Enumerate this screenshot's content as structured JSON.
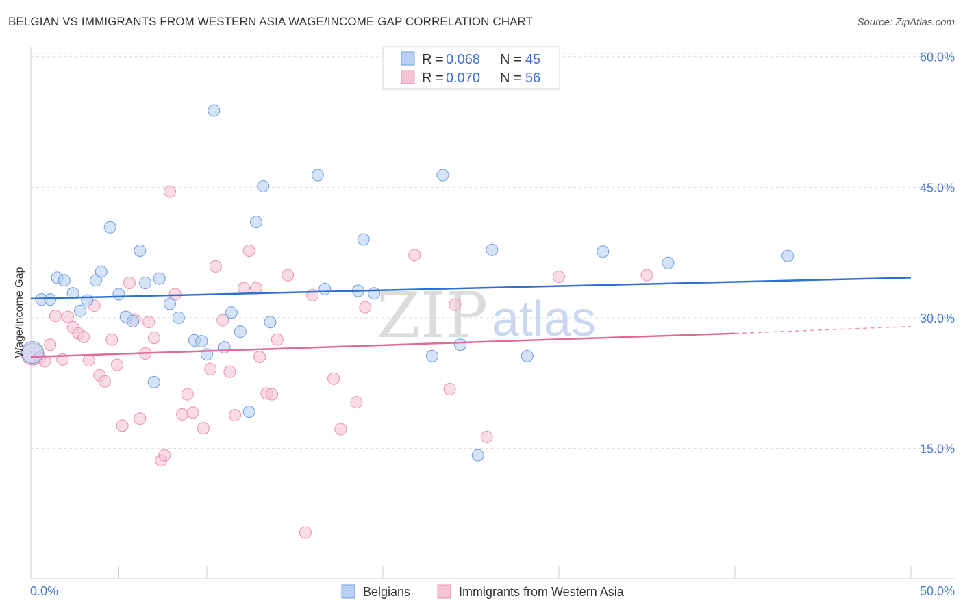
{
  "title": "BELGIAN VS IMMIGRANTS FROM WESTERN ASIA WAGE/INCOME GAP CORRELATION CHART",
  "source": "Source: ZipAtlas.com",
  "watermark": {
    "zip": "ZIP",
    "atlas": "atlas"
  },
  "colors": {
    "blue_fill": "#b8d0f4",
    "blue_stroke": "#6f9be0",
    "blue_line": "#2f6fd0",
    "pink_fill": "#f7c4d4",
    "pink_stroke": "#e990ab",
    "pink_line": "#e06a93",
    "grid": "#dcdcdc",
    "tick_text": "#4a7bd0"
  },
  "legend": {
    "rows": [
      {
        "r_label": "R = ",
        "r_value": "0.068",
        "n_label": "N = ",
        "n_value": "45"
      },
      {
        "r_label": "R = ",
        "r_value": "0.070",
        "n_label": "N = ",
        "n_value": "56"
      }
    ]
  },
  "bottom_legend": [
    "Belgians",
    "Immigrants from Western Asia"
  ],
  "chart_data": {
    "type": "scatter",
    "title": "BELGIAN VS IMMIGRANTS FROM WESTERN ASIA WAGE/INCOME GAP CORRELATION CHART",
    "xlabel": "",
    "ylabel": "Wage/Income Gap",
    "xlim": [
      0,
      50
    ],
    "ylim": [
      0,
      61
    ],
    "x_tick_labels": [
      "0.0%",
      "50.0%"
    ],
    "y_ticks": [
      15,
      30,
      45,
      60
    ],
    "y_tick_labels": [
      "15.0%",
      "30.0%",
      "45.0%",
      "60.0%"
    ],
    "grid": true,
    "legend_position": "top-center",
    "series": [
      {
        "name": "Belgians",
        "r": 0.068,
        "n": 45,
        "trend": {
          "x": [
            0,
            50
          ],
          "y": [
            32.2,
            34.6
          ]
        },
        "points": [
          {
            "x": 0.1,
            "y": 26.0,
            "big": true
          },
          {
            "x": 0.6,
            "y": 32.1
          },
          {
            "x": 1.1,
            "y": 32.1
          },
          {
            "x": 1.5,
            "y": 34.6
          },
          {
            "x": 1.9,
            "y": 34.3
          },
          {
            "x": 2.4,
            "y": 32.8
          },
          {
            "x": 2.8,
            "y": 30.8
          },
          {
            "x": 3.2,
            "y": 32.0
          },
          {
            "x": 3.7,
            "y": 34.3
          },
          {
            "x": 4.0,
            "y": 35.3
          },
          {
            "x": 4.5,
            "y": 40.4
          },
          {
            "x": 5.0,
            "y": 32.7
          },
          {
            "x": 5.4,
            "y": 30.1
          },
          {
            "x": 5.8,
            "y": 29.6
          },
          {
            "x": 6.2,
            "y": 37.7
          },
          {
            "x": 6.5,
            "y": 34.0
          },
          {
            "x": 7.0,
            "y": 22.6
          },
          {
            "x": 7.3,
            "y": 34.5
          },
          {
            "x": 7.9,
            "y": 31.6
          },
          {
            "x": 8.4,
            "y": 30.0
          },
          {
            "x": 9.3,
            "y": 27.4
          },
          {
            "x": 9.7,
            "y": 27.3
          },
          {
            "x": 10.0,
            "y": 25.8
          },
          {
            "x": 10.4,
            "y": 53.8
          },
          {
            "x": 11.0,
            "y": 26.6
          },
          {
            "x": 11.4,
            "y": 30.6
          },
          {
            "x": 11.9,
            "y": 28.4
          },
          {
            "x": 12.4,
            "y": 19.2
          },
          {
            "x": 12.8,
            "y": 41.0
          },
          {
            "x": 13.2,
            "y": 45.1
          },
          {
            "x": 13.6,
            "y": 29.5
          },
          {
            "x": 16.3,
            "y": 46.4
          },
          {
            "x": 16.7,
            "y": 33.3
          },
          {
            "x": 18.6,
            "y": 33.1
          },
          {
            "x": 18.9,
            "y": 39.0
          },
          {
            "x": 19.5,
            "y": 32.8
          },
          {
            "x": 22.8,
            "y": 25.6
          },
          {
            "x": 23.4,
            "y": 46.4
          },
          {
            "x": 24.4,
            "y": 26.9
          },
          {
            "x": 25.4,
            "y": 14.2
          },
          {
            "x": 26.2,
            "y": 37.8
          },
          {
            "x": 28.2,
            "y": 25.6
          },
          {
            "x": 32.5,
            "y": 37.6
          },
          {
            "x": 36.2,
            "y": 36.3
          },
          {
            "x": 43.0,
            "y": 37.1
          }
        ]
      },
      {
        "name": "Immigrants from Western Asia",
        "r": 0.07,
        "n": 56,
        "trend": {
          "x": [
            0,
            40
          ],
          "y": [
            25.5,
            28.2
          ]
        },
        "trend_extension": {
          "x": [
            40,
            50
          ],
          "y": [
            28.2,
            29.0
          ]
        },
        "points": [
          {
            "x": 0.1,
            "y": 25.8,
            "big": true
          },
          {
            "x": 0.5,
            "y": 25.4
          },
          {
            "x": 0.8,
            "y": 25.0
          },
          {
            "x": 1.1,
            "y": 26.9
          },
          {
            "x": 1.4,
            "y": 30.2
          },
          {
            "x": 1.8,
            "y": 25.2
          },
          {
            "x": 2.1,
            "y": 30.1
          },
          {
            "x": 2.4,
            "y": 28.9
          },
          {
            "x": 2.7,
            "y": 28.2
          },
          {
            "x": 3.0,
            "y": 27.8
          },
          {
            "x": 3.3,
            "y": 25.1
          },
          {
            "x": 3.6,
            "y": 31.4
          },
          {
            "x": 3.9,
            "y": 23.4
          },
          {
            "x": 4.2,
            "y": 22.7
          },
          {
            "x": 4.6,
            "y": 27.5
          },
          {
            "x": 4.9,
            "y": 24.6
          },
          {
            "x": 5.2,
            "y": 17.6
          },
          {
            "x": 5.6,
            "y": 34.0
          },
          {
            "x": 5.9,
            "y": 29.8
          },
          {
            "x": 6.2,
            "y": 18.4
          },
          {
            "x": 6.5,
            "y": 25.9
          },
          {
            "x": 6.7,
            "y": 29.5
          },
          {
            "x": 7.0,
            "y": 27.7
          },
          {
            "x": 7.4,
            "y": 13.6
          },
          {
            "x": 7.6,
            "y": 14.2
          },
          {
            "x": 7.9,
            "y": 44.5
          },
          {
            "x": 8.2,
            "y": 32.7
          },
          {
            "x": 8.6,
            "y": 18.9
          },
          {
            "x": 8.9,
            "y": 21.2
          },
          {
            "x": 9.2,
            "y": 19.1
          },
          {
            "x": 9.8,
            "y": 17.3
          },
          {
            "x": 10.2,
            "y": 24.1
          },
          {
            "x": 10.5,
            "y": 35.9
          },
          {
            "x": 10.9,
            "y": 29.7
          },
          {
            "x": 11.3,
            "y": 23.8
          },
          {
            "x": 11.6,
            "y": 18.8
          },
          {
            "x": 12.1,
            "y": 33.4
          },
          {
            "x": 12.4,
            "y": 37.7
          },
          {
            "x": 12.8,
            "y": 33.4
          },
          {
            "x": 13.0,
            "y": 25.5
          },
          {
            "x": 13.4,
            "y": 21.3
          },
          {
            "x": 13.7,
            "y": 21.2
          },
          {
            "x": 14.0,
            "y": 27.5
          },
          {
            "x": 14.6,
            "y": 34.9
          },
          {
            "x": 15.6,
            "y": 5.3
          },
          {
            "x": 16.0,
            "y": 32.6
          },
          {
            "x": 17.2,
            "y": 23.0
          },
          {
            "x": 17.6,
            "y": 17.2
          },
          {
            "x": 18.5,
            "y": 20.3
          },
          {
            "x": 19.0,
            "y": 31.2
          },
          {
            "x": 21.8,
            "y": 37.2
          },
          {
            "x": 23.8,
            "y": 21.8
          },
          {
            "x": 24.1,
            "y": 31.5
          },
          {
            "x": 25.9,
            "y": 16.3
          },
          {
            "x": 30.0,
            "y": 34.7
          },
          {
            "x": 35.0,
            "y": 34.9
          }
        ]
      }
    ]
  }
}
